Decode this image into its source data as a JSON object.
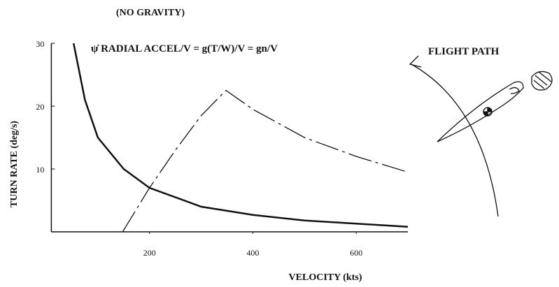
{
  "chart_data": {
    "type": "line",
    "title": "(NO GRAVITY)",
    "annotations": [
      "ψ̇ RADIAL ACCEL/V = g(T/W)/V = gn/V",
      "FLIGHT PATH"
    ],
    "y_label": "TURN RATE (deg/s)",
    "x_label": "VELOCITY (kts)",
    "xlim": [
      10,
      700
    ],
    "xticks": [
      200,
      400,
      600
    ],
    "ylim": [
      0,
      30
    ],
    "yticks": [
      10,
      20,
      30
    ],
    "series": [
      {
        "color": "#111111",
        "style": "solid",
        "x": [
          53,
          75,
          100,
          150,
          200,
          300,
          400,
          500,
          600,
          700
        ],
        "values": [
          30,
          21,
          15,
          10,
          7,
          4,
          2.7,
          1.8,
          1.3,
          0.8
        ]
      },
      {
        "color": "#111111",
        "style": "dashed",
        "x": [
          148,
          200,
          250,
          300,
          348,
          400,
          500,
          600,
          700
        ],
        "values": [
          0,
          7,
          13,
          18.5,
          22.5,
          19.5,
          15,
          12,
          9.5
        ]
      }
    ]
  }
}
